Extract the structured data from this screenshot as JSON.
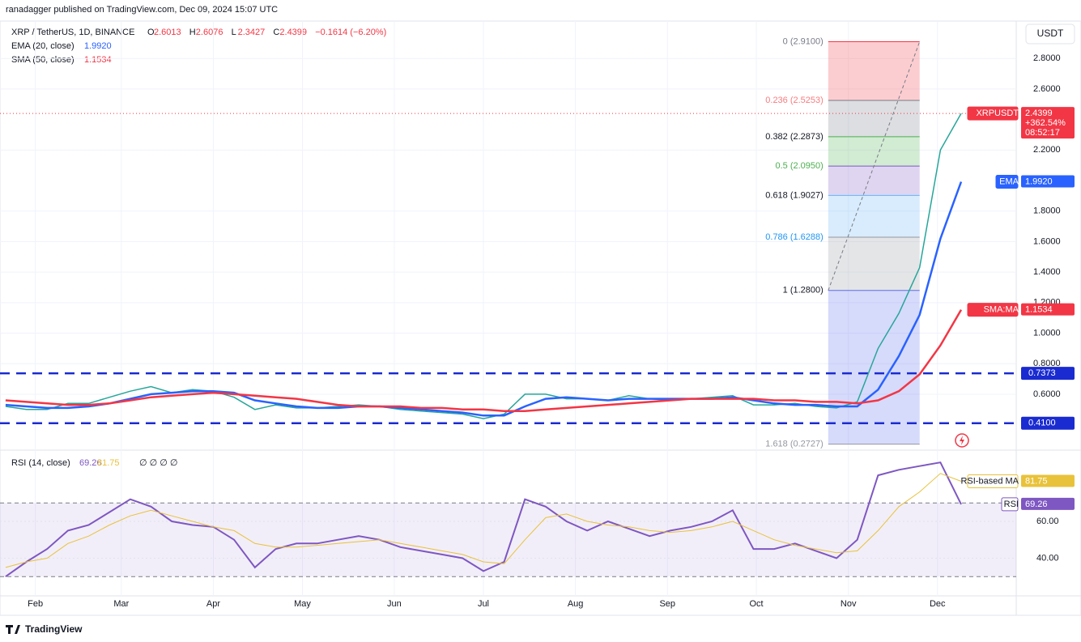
{
  "header": {
    "published": "ranadagger published on TradingView.com, Dec 09, 2024 15:07 UTC"
  },
  "legend": {
    "symbol": "XRP / TetherUS, 1D, BINANCE",
    "ohlc": [
      {
        "key": "O",
        "value": "2.6013"
      },
      {
        "key": "H",
        "value": "2.6076"
      },
      {
        "key": "L",
        "value": "2.3427"
      },
      {
        "key": "C",
        "value": "2.4399"
      }
    ],
    "change": "−0.1614 (−6.20%)",
    "indicators": [
      {
        "name": "EMA (20, close)",
        "value": "1.9920"
      },
      {
        "name": "SMA (50, close)",
        "value": "1.1534"
      }
    ]
  },
  "currency_button": "USDT",
  "chart_data": [
    {
      "type": "line",
      "xlim": [
        -0.27,
        48.65
      ],
      "ylim": [
        0.239,
        3.024
      ],
      "grid": true,
      "xticks": [
        {
          "value": 1.43,
          "label": "Feb"
        },
        {
          "value": 5.57,
          "label": "Mar"
        },
        {
          "value": 10,
          "label": "Apr"
        },
        {
          "value": 14.29,
          "label": "May"
        },
        {
          "value": 18.71,
          "label": "Jun"
        },
        {
          "value": 23,
          "label": "Jul"
        },
        {
          "value": 27.43,
          "label": "Aug"
        },
        {
          "value": 31.86,
          "label": "Sep"
        },
        {
          "value": 36.14,
          "label": "Oct"
        },
        {
          "value": 40.57,
          "label": "Nov"
        },
        {
          "value": 44.86,
          "label": "Dec"
        }
      ],
      "yticks": [
        {
          "value": 0.6,
          "label": "0.6000"
        },
        {
          "value": 0.8,
          "label": "0.8000"
        },
        {
          "value": 1,
          "label": "1.0000"
        },
        {
          "value": 1.2,
          "label": "1.2000"
        },
        {
          "value": 1.4,
          "label": "1.4000"
        },
        {
          "value": 1.6,
          "label": "1.6000"
        },
        {
          "value": 1.8,
          "label": "1.8000"
        },
        {
          "value": 2.2,
          "label": "2.2000"
        },
        {
          "value": 2.6,
          "label": "2.6000"
        },
        {
          "value": 2.8,
          "label": "2.8000"
        }
      ],
      "series": [
        {
          "name": "XRPUSDT",
          "color": "#26a69a",
          "tag_color": "#f23645",
          "last_label": "2.4399",
          "extra_labels": [
            "+362.54%",
            "08:52:17"
          ],
          "values": [
            0.52,
            0.5,
            0.5,
            0.54,
            0.54,
            0.58,
            0.62,
            0.65,
            0.61,
            0.63,
            0.62,
            0.58,
            0.5,
            0.53,
            0.51,
            0.51,
            0.52,
            0.53,
            0.52,
            0.5,
            0.49,
            0.48,
            0.47,
            0.44,
            0.47,
            0.6,
            0.6,
            0.57,
            0.57,
            0.56,
            0.59,
            0.57,
            0.56,
            0.57,
            0.58,
            0.59,
            0.53,
            0.53,
            0.54,
            0.52,
            0.51,
            0.55,
            0.9,
            1.13,
            1.43,
            2.2,
            2.4399
          ]
        },
        {
          "name": "EMA",
          "color": "#2962ff",
          "tag_color": "#2962ff",
          "last_label": "1.9920",
          "values": [
            0.53,
            0.52,
            0.51,
            0.51,
            0.52,
            0.54,
            0.57,
            0.6,
            0.61,
            0.62,
            0.62,
            0.61,
            0.56,
            0.54,
            0.52,
            0.51,
            0.51,
            0.52,
            0.52,
            0.51,
            0.5,
            0.49,
            0.48,
            0.46,
            0.46,
            0.52,
            0.57,
            0.58,
            0.57,
            0.56,
            0.57,
            0.57,
            0.57,
            0.57,
            0.57,
            0.58,
            0.56,
            0.54,
            0.53,
            0.53,
            0.52,
            0.52,
            0.63,
            0.85,
            1.12,
            1.62,
            1.992
          ]
        },
        {
          "name": "SMA:MA",
          "color": "#f23645",
          "tag_color": "#f23645",
          "last_label": "1.1534",
          "values": [
            0.56,
            0.55,
            0.54,
            0.53,
            0.53,
            0.54,
            0.56,
            0.58,
            0.59,
            0.6,
            0.61,
            0.6,
            0.59,
            0.58,
            0.57,
            0.55,
            0.53,
            0.52,
            0.52,
            0.52,
            0.51,
            0.51,
            0.5,
            0.5,
            0.49,
            0.49,
            0.5,
            0.51,
            0.52,
            0.53,
            0.54,
            0.55,
            0.56,
            0.57,
            0.57,
            0.57,
            0.57,
            0.56,
            0.56,
            0.55,
            0.55,
            0.54,
            0.56,
            0.62,
            0.73,
            0.92,
            1.1534
          ]
        }
      ],
      "hlines": {
        "color": "#1a2bd1",
        "levels": [
          {
            "value": 0.7373,
            "label": "0.7373"
          },
          {
            "value": 0.41,
            "label": "0.4100"
          }
        ]
      },
      "fibonacci": {
        "x_range": [
          39.6,
          44.0
        ],
        "levels": [
          {
            "ratio": 0,
            "price": 2.91,
            "label": "0 (2.9100)",
            "color": "#787b86",
            "zone_color": "#f23645"
          },
          {
            "ratio": 0.236,
            "price": 2.5253,
            "label": "0.236 (2.5253)",
            "color": "#f77c80",
            "zone_color": "#787b86"
          },
          {
            "ratio": 0.382,
            "price": 2.2873,
            "label": "0.382 (2.2873)",
            "color": "#131722",
            "zone_color": "#4caf50"
          },
          {
            "ratio": 0.5,
            "price": 2.095,
            "label": "0.5 (2.0950)",
            "color": "#4caf50",
            "zone_color": "#7e57c2"
          },
          {
            "ratio": 0.618,
            "price": 1.9027,
            "label": "0.618 (1.9027)",
            "color": "#131722",
            "zone_color": "#64b5f6"
          },
          {
            "ratio": 0.786,
            "price": 1.6288,
            "label": "0.786 (1.6288)",
            "color": "#2196f3",
            "zone_color": "#9598a1"
          },
          {
            "ratio": 1,
            "price": 1.28,
            "label": "1 (1.2800)",
            "color": "#131722",
            "zone_color": "#5c6bf0"
          },
          {
            "ratio": 1.618,
            "price": 0.2727,
            "label": "1.618 (0.2727)",
            "color": "#9598a1"
          }
        ]
      }
    },
    {
      "type": "line",
      "legend": "RSI (14, close)",
      "legend_tail": "∅ ∅ ∅ ∅",
      "xlim": [
        -0.27,
        48.65
      ],
      "ylim": [
        20,
        97.8
      ],
      "band": [
        30,
        70
      ],
      "yticks": [
        {
          "value": 40,
          "label": "40.00"
        },
        {
          "value": 60,
          "label": "60.00"
        }
      ],
      "series": [
        {
          "name": "RSI",
          "color": "#7e57c2",
          "last_label": "69.26",
          "values": [
            30,
            38,
            45,
            55,
            58,
            65,
            72,
            68,
            60,
            58,
            57,
            50,
            35,
            45,
            48,
            48,
            50,
            52,
            50,
            46,
            44,
            42,
            40,
            33,
            38,
            72,
            68,
            60,
            55,
            60,
            56,
            52,
            55,
            57,
            60,
            66,
            45,
            45,
            48,
            44,
            40,
            50,
            85,
            88,
            90,
            92,
            69.26
          ]
        },
        {
          "name": "RSI-based MA",
          "color": "#e8c23a",
          "last_label": "81.75",
          "values": [
            35,
            38,
            40,
            48,
            52,
            58,
            63,
            66,
            63,
            60,
            57,
            55,
            48,
            46,
            46,
            47,
            48,
            49,
            50,
            48,
            46,
            44,
            42,
            38,
            37,
            50,
            62,
            64,
            60,
            58,
            57,
            55,
            54,
            55,
            57,
            60,
            55,
            50,
            47,
            45,
            43,
            44,
            55,
            68,
            76,
            86,
            81.75
          ]
        }
      ]
    }
  ],
  "footer": {
    "brand": "TradingView"
  }
}
